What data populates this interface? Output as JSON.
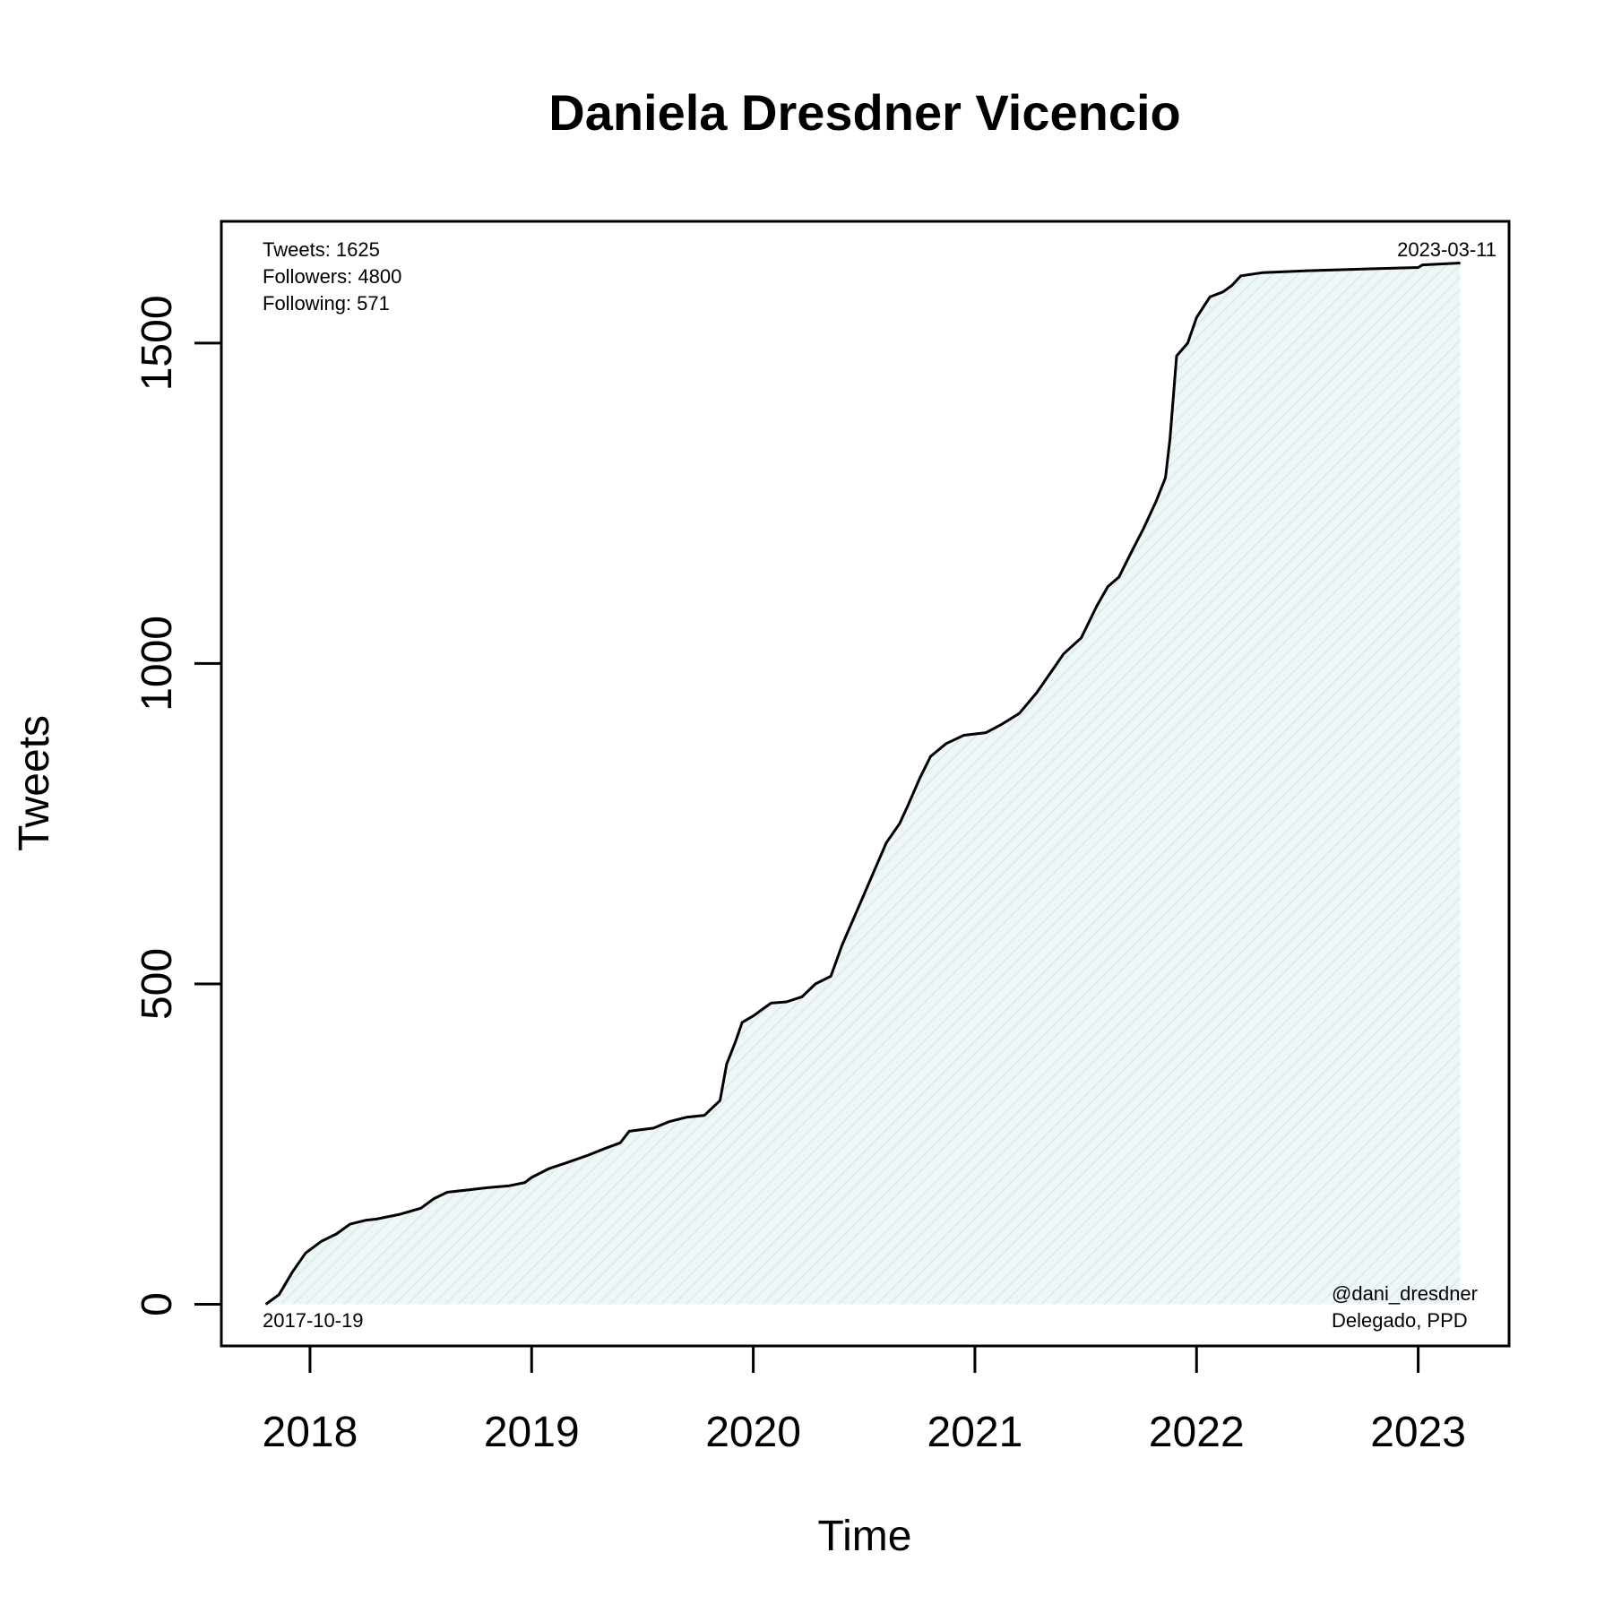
{
  "chart_data": {
    "type": "area",
    "title": "Daniela Dresdner Vicencio",
    "xlabel": "Time",
    "ylabel": "Tweets",
    "xlim": [
      2017.6,
      2023.41
    ],
    "ylim": [
      -65,
      1690
    ],
    "xticks": [
      {
        "value": 2018,
        "label": "2018"
      },
      {
        "value": 2019,
        "label": "2019"
      },
      {
        "value": 2020,
        "label": "2020"
      },
      {
        "value": 2021,
        "label": "2021"
      },
      {
        "value": 2022,
        "label": "2022"
      },
      {
        "value": 2023,
        "label": "2023"
      }
    ],
    "yticks": [
      {
        "value": 0,
        "label": "0"
      },
      {
        "value": 500,
        "label": "500"
      },
      {
        "value": 1000,
        "label": "1000"
      },
      {
        "value": 1500,
        "label": "1500"
      }
    ],
    "grid": false,
    "fill_color": "#e8f2f5",
    "line_color": "#000000",
    "series": [
      {
        "points": [
          [
            2017.8,
            0
          ],
          [
            2017.86,
            15
          ],
          [
            2017.92,
            50
          ],
          [
            2017.98,
            80
          ],
          [
            2018.05,
            98
          ],
          [
            2018.12,
            110
          ],
          [
            2018.18,
            125
          ],
          [
            2018.25,
            131
          ],
          [
            2018.3,
            133
          ],
          [
            2018.4,
            140
          ],
          [
            2018.5,
            150
          ],
          [
            2018.56,
            165
          ],
          [
            2018.62,
            175
          ],
          [
            2018.7,
            178
          ],
          [
            2018.8,
            182
          ],
          [
            2018.9,
            185
          ],
          [
            2018.97,
            190
          ],
          [
            2019.0,
            198
          ],
          [
            2019.08,
            212
          ],
          [
            2019.15,
            220
          ],
          [
            2019.25,
            232
          ],
          [
            2019.33,
            243
          ],
          [
            2019.4,
            252
          ],
          [
            2019.44,
            270
          ],
          [
            2019.55,
            275
          ],
          [
            2019.62,
            285
          ],
          [
            2019.7,
            292
          ],
          [
            2019.78,
            295
          ],
          [
            2019.85,
            318
          ],
          [
            2019.88,
            375
          ],
          [
            2019.92,
            410
          ],
          [
            2019.95,
            440
          ],
          [
            2020.0,
            450
          ],
          [
            2020.08,
            470
          ],
          [
            2020.15,
            472
          ],
          [
            2020.22,
            480
          ],
          [
            2020.28,
            500
          ],
          [
            2020.35,
            512
          ],
          [
            2020.4,
            560
          ],
          [
            2020.45,
            600
          ],
          [
            2020.5,
            640
          ],
          [
            2020.55,
            680
          ],
          [
            2020.6,
            720
          ],
          [
            2020.66,
            750
          ],
          [
            2020.7,
            780
          ],
          [
            2020.75,
            820
          ],
          [
            2020.8,
            855
          ],
          [
            2020.87,
            875
          ],
          [
            2020.95,
            888
          ],
          [
            2021.05,
            892
          ],
          [
            2021.12,
            905
          ],
          [
            2021.2,
            922
          ],
          [
            2021.28,
            955
          ],
          [
            2021.35,
            990
          ],
          [
            2021.4,
            1015
          ],
          [
            2021.48,
            1040
          ],
          [
            2021.55,
            1090
          ],
          [
            2021.6,
            1120
          ],
          [
            2021.65,
            1135
          ],
          [
            2021.7,
            1170
          ],
          [
            2021.76,
            1210
          ],
          [
            2021.82,
            1255
          ],
          [
            2021.86,
            1290
          ],
          [
            2021.88,
            1350
          ],
          [
            2021.91,
            1480
          ],
          [
            2021.96,
            1500
          ],
          [
            2022.0,
            1540
          ],
          [
            2022.06,
            1572
          ],
          [
            2022.12,
            1580
          ],
          [
            2022.16,
            1590
          ],
          [
            2022.2,
            1605
          ],
          [
            2022.3,
            1610
          ],
          [
            2022.5,
            1613
          ],
          [
            2022.8,
            1616
          ],
          [
            2023.0,
            1618
          ],
          [
            2023.02,
            1622
          ],
          [
            2023.19,
            1625
          ]
        ]
      }
    ],
    "annotations": {
      "top_left": [
        "Tweets: 1625",
        "Followers: 4800",
        "Following: 571"
      ],
      "top_right": "2023-03-11",
      "bottom_left": "2017-10-19",
      "bottom_right": [
        "@dani_dresdner",
        "Delegado, PPD"
      ]
    }
  }
}
